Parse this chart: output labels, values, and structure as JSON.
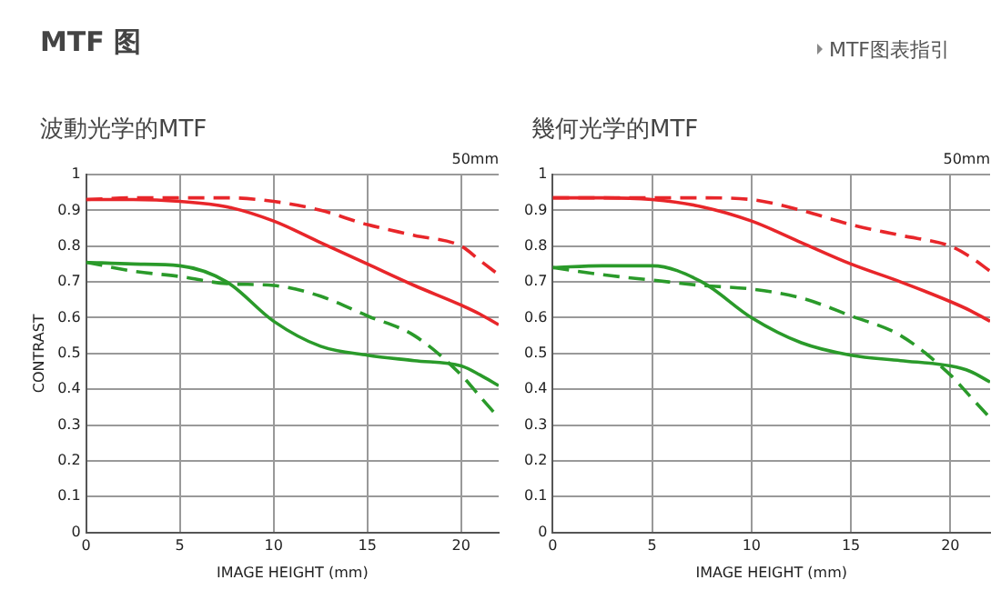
{
  "chart_data": [
    {
      "type": "line",
      "title": "波動光学的MTF",
      "xlabel": "IMAGE HEIGHT (mm)",
      "ylabel": "CONTRAST",
      "annotations": [
        "MTF 图",
        "MTF图表指引",
        "50mm"
      ],
      "x": [
        0,
        2.5,
        5,
        7.5,
        10,
        12.5,
        15,
        17.5,
        20,
        21,
        22
      ],
      "xlim": [
        0,
        22
      ],
      "xticks": [
        0,
        5,
        10,
        15,
        20
      ],
      "ylim": [
        0,
        1
      ],
      "yticks": [
        0,
        0.1,
        0.2,
        0.3,
        0.4,
        0.5,
        0.6,
        0.7,
        0.8,
        0.9,
        1
      ],
      "grid": true,
      "legend": false,
      "marker": "none",
      "series": [
        {
          "color": "#e8262a",
          "line_style": "solid",
          "values": [
            0.93,
            0.93,
            0.925,
            0.91,
            0.87,
            0.81,
            0.75,
            0.69,
            0.635,
            0.61,
            0.58
          ]
        },
        {
          "color": "#e8262a",
          "line_style": "dashed",
          "values": [
            0.93,
            0.935,
            0.935,
            0.935,
            0.925,
            0.9,
            0.86,
            0.83,
            0.8,
            0.76,
            0.72
          ]
        },
        {
          "color": "#2a9a2a",
          "line_style": "solid",
          "values": [
            0.755,
            0.75,
            0.745,
            0.7,
            0.59,
            0.52,
            0.495,
            0.48,
            0.465,
            0.44,
            0.41
          ]
        },
        {
          "color": "#2a9a2a",
          "line_style": "dashed",
          "values": [
            0.755,
            0.73,
            0.715,
            0.695,
            0.69,
            0.66,
            0.605,
            0.55,
            0.44,
            0.38,
            0.32
          ]
        }
      ]
    },
    {
      "type": "line",
      "title": "幾何光学的MTF",
      "xlabel": "IMAGE HEIGHT (mm)",
      "annotations": [
        "50mm"
      ],
      "x": [
        0,
        2.5,
        5,
        7.5,
        10,
        12.5,
        15,
        17.5,
        20,
        21,
        22
      ],
      "xlim": [
        0,
        22
      ],
      "xticks": [
        0,
        5,
        10,
        15,
        20
      ],
      "ylim": [
        0,
        1
      ],
      "yticks": [
        0,
        0.1,
        0.2,
        0.3,
        0.4,
        0.5,
        0.6,
        0.7,
        0.8,
        0.9,
        1
      ],
      "grid": true,
      "legend": false,
      "marker": "none",
      "series": [
        {
          "color": "#e8262a",
          "line_style": "solid",
          "values": [
            0.935,
            0.935,
            0.93,
            0.91,
            0.87,
            0.81,
            0.75,
            0.7,
            0.645,
            0.62,
            0.59
          ]
        },
        {
          "color": "#e8262a",
          "line_style": "dashed",
          "values": [
            0.935,
            0.935,
            0.935,
            0.935,
            0.93,
            0.9,
            0.86,
            0.83,
            0.8,
            0.77,
            0.73
          ]
        },
        {
          "color": "#2a9a2a",
          "line_style": "solid",
          "values": [
            0.74,
            0.745,
            0.745,
            0.7,
            0.6,
            0.53,
            0.495,
            0.48,
            0.465,
            0.45,
            0.42
          ]
        },
        {
          "color": "#2a9a2a",
          "line_style": "dashed",
          "values": [
            0.74,
            0.72,
            0.705,
            0.69,
            0.68,
            0.655,
            0.605,
            0.55,
            0.44,
            0.38,
            0.32
          ]
        }
      ]
    }
  ]
}
